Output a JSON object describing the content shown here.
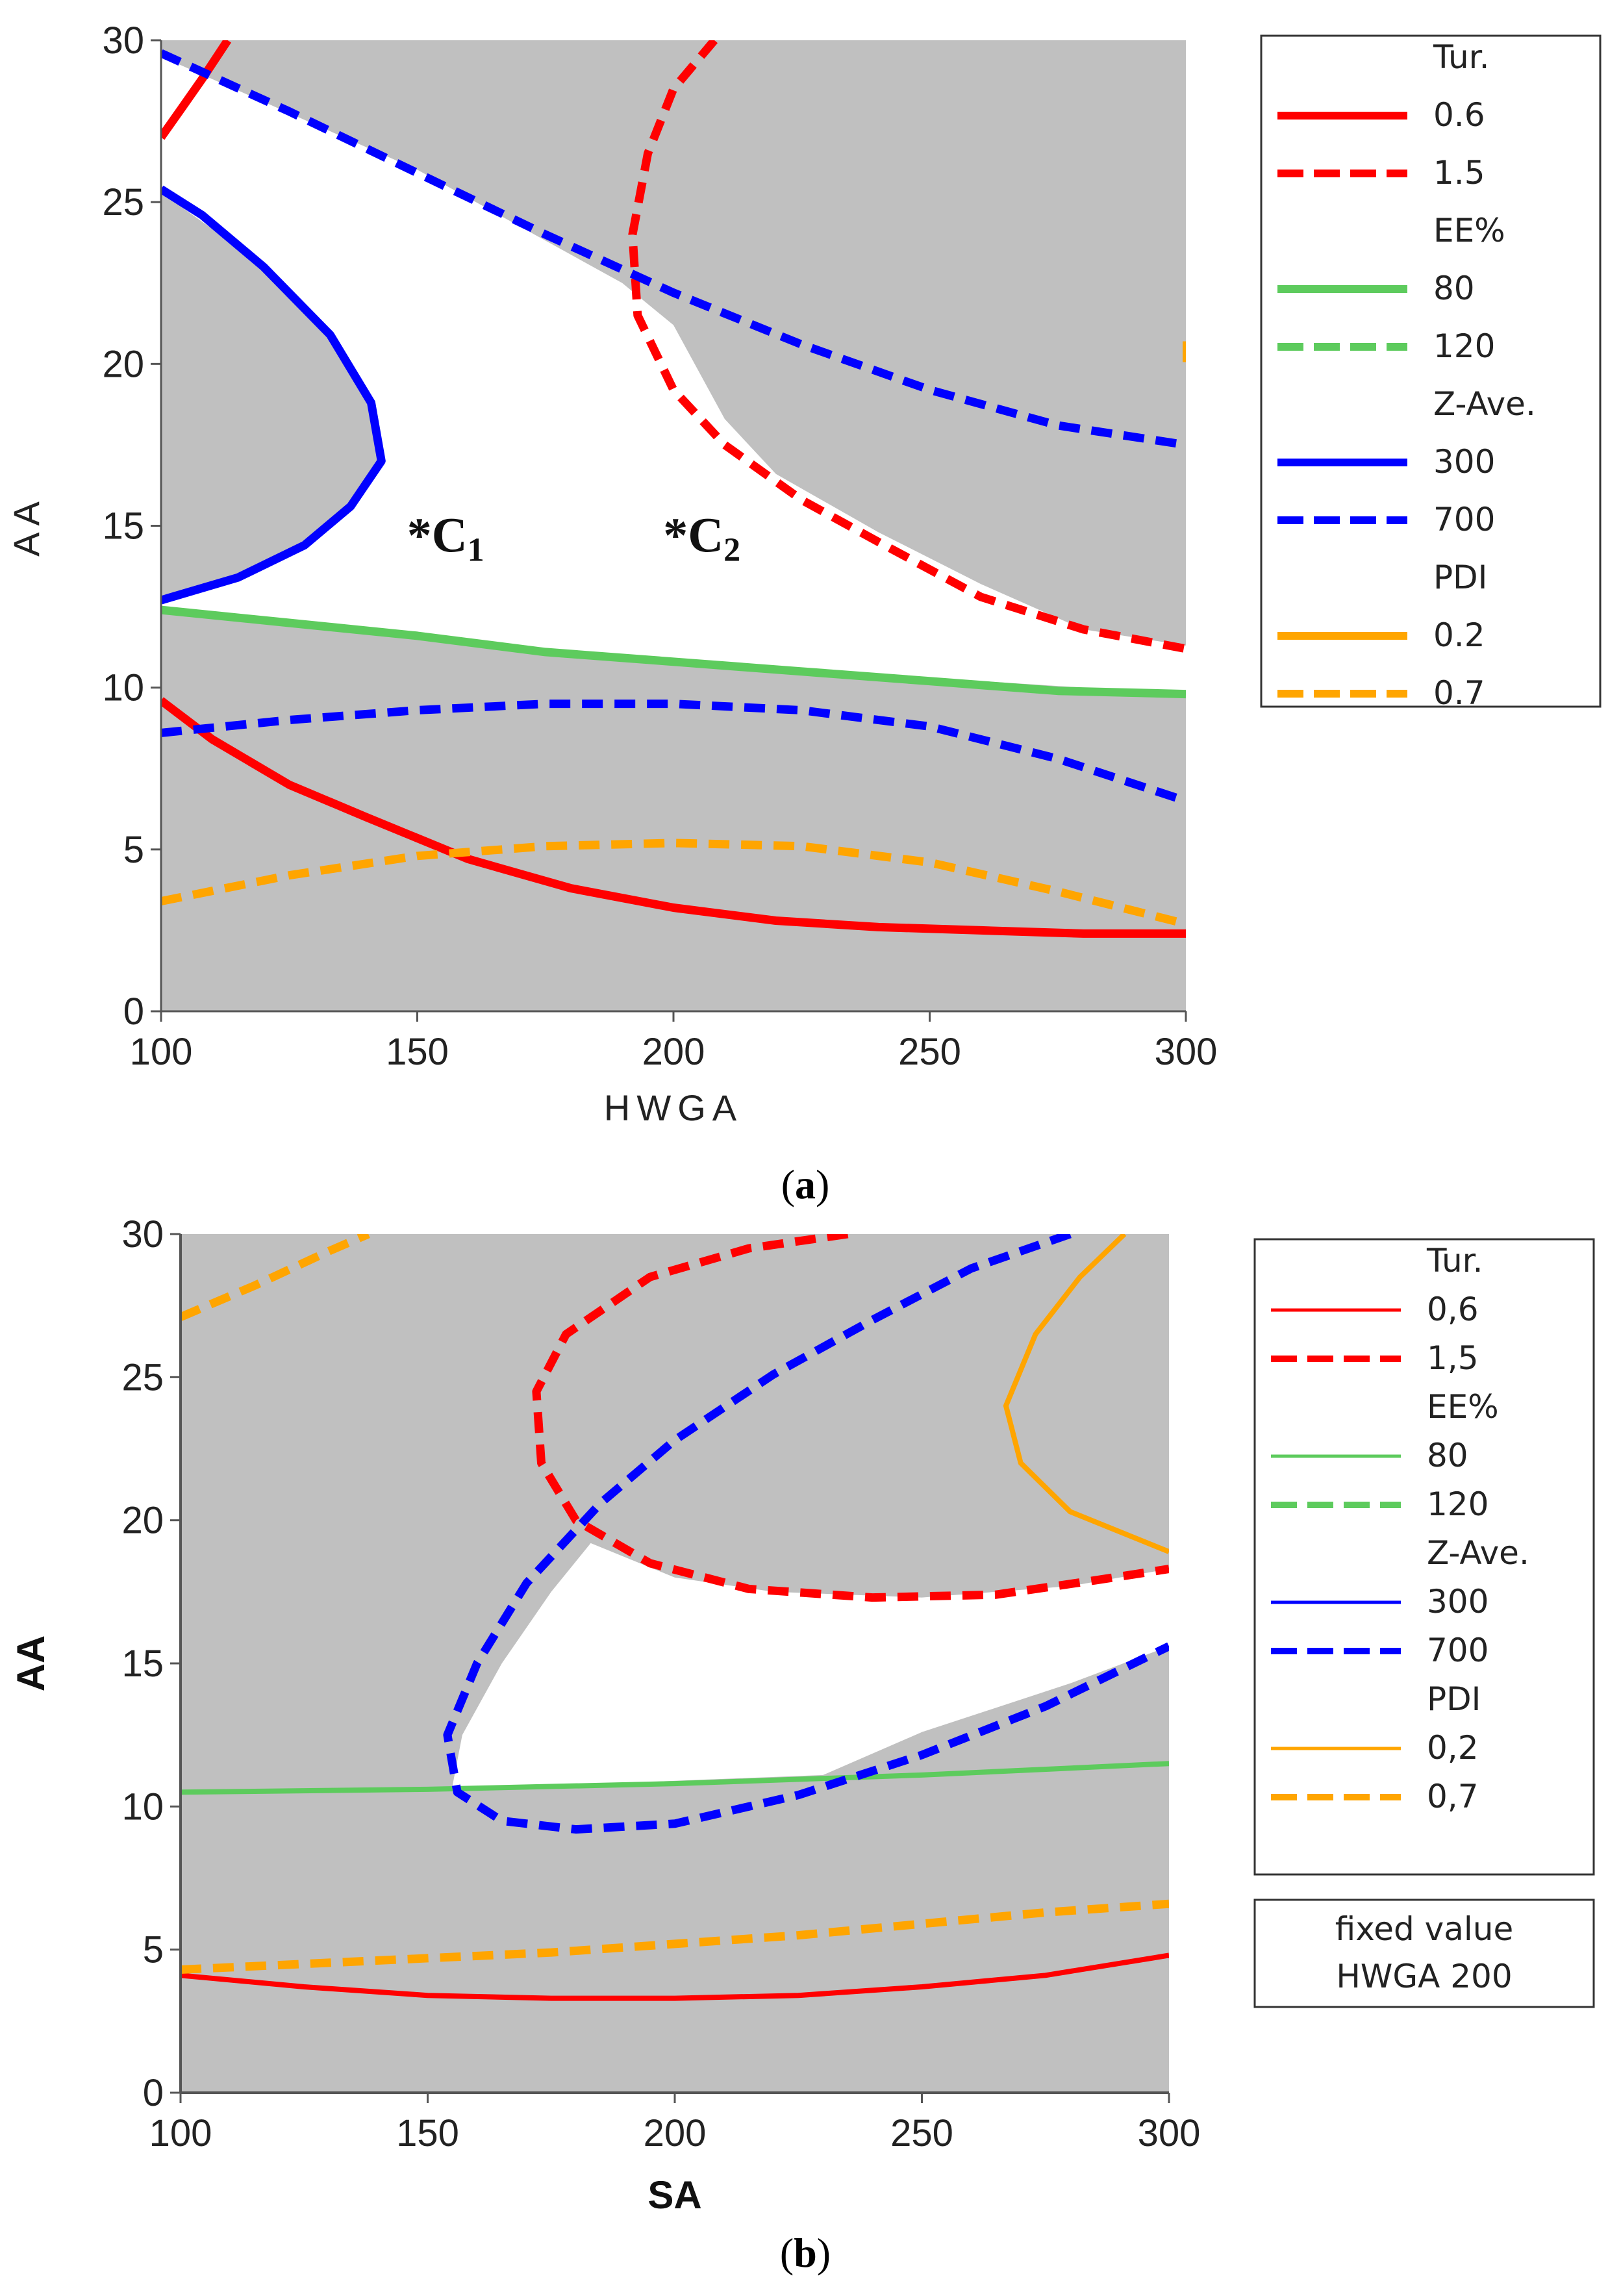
{
  "chart_data": [
    {
      "type": "line",
      "panel_label": "(a)",
      "title": "",
      "xlabel": "HWGA",
      "ylabel": "AA",
      "xlim": [
        100,
        300
      ],
      "ylim": [
        0,
        30
      ],
      "xticks": [
        "100",
        "150",
        "200",
        "250",
        "300"
      ],
      "yticks": [
        "0",
        "5",
        "10",
        "15",
        "20",
        "25",
        "30"
      ],
      "background_color": "#c0c0c0",
      "feasible_region_color": "#ffffff",
      "feasible_region": [
        [
          100,
          12.6
        ],
        [
          115,
          13.4
        ],
        [
          130,
          14.5
        ],
        [
          138,
          15.7
        ],
        [
          143,
          17.0
        ],
        [
          140,
          19.0
        ],
        [
          130,
          21.4
        ],
        [
          115,
          23.6
        ],
        [
          100,
          25.3
        ],
        [
          100,
          29.5
        ],
        [
          150,
          26.0
        ],
        [
          190,
          22.5
        ],
        [
          200,
          21.2
        ],
        [
          210,
          18.3
        ],
        [
          220,
          16.6
        ],
        [
          240,
          14.8
        ],
        [
          260,
          13.2
        ],
        [
          280,
          11.8
        ],
        [
          300,
          11.3
        ],
        [
          300,
          9.8
        ],
        [
          250,
          10.3
        ],
        [
          200,
          10.8
        ],
        [
          150,
          11.6
        ],
        [
          100,
          12.4
        ]
      ],
      "annotations": [
        {
          "text": "*C",
          "subscript": "1",
          "x": 148,
          "y": 14.2
        },
        {
          "text": "*C",
          "subscript": "2",
          "x": 198,
          "y": 14.2
        }
      ],
      "legend_groups": [
        {
          "title": "Tur.",
          "entries": [
            {
              "label": "0.6",
              "style": "solid"
            },
            {
              "label": "1.5",
              "style": "dashed"
            }
          ]
        },
        {
          "title": "EE%",
          "entries": [
            {
              "label": "80",
              "style": "solid"
            },
            {
              "label": "120",
              "style": "dashed"
            }
          ]
        },
        {
          "title": "Z-Ave.",
          "entries": [
            {
              "label": "300",
              "style": "solid"
            },
            {
              "label": "700",
              "style": "dashed"
            }
          ]
        },
        {
          "title": "PDI",
          "entries": [
            {
              "label": "0.2",
              "style": "solid"
            },
            {
              "label": "0.7",
              "style": "dashed"
            }
          ]
        }
      ],
      "fixed_value_box": null,
      "series": [
        {
          "name": "Tur. 0.6",
          "color": "#ff0000",
          "style": "solid",
          "width": 1.3,
          "points": [
            [
              100,
              9.6
            ],
            [
              110,
              8.4
            ],
            [
              125,
              7.0
            ],
            [
              140,
              6.0
            ],
            [
              160,
              4.7
            ],
            [
              180,
              3.8
            ],
            [
              200,
              3.2
            ],
            [
              220,
              2.8
            ],
            [
              240,
              2.6
            ],
            [
              260,
              2.5
            ],
            [
              280,
              2.4
            ],
            [
              300,
              2.4
            ]
          ]
        },
        {
          "name": "Tur. 0.6",
          "color": "#ff0000",
          "style": "solid",
          "width": 1.3,
          "points": [
            [
              100,
              27.0
            ],
            [
              104,
              27.9
            ],
            [
              108,
              28.8
            ],
            [
              113,
              30.0
            ]
          ]
        },
        {
          "name": "Tur. 1.5",
          "color": "#ff0000",
          "style": "dashed",
          "width": 1.3,
          "points": [
            [
              208,
              30.0
            ],
            [
              200,
              28.5
            ],
            [
              195,
              26.5
            ],
            [
              192,
              24.0
            ],
            [
              193,
              21.5
            ],
            [
              200,
              19.2
            ],
            [
              210,
              17.5
            ],
            [
              225,
              15.8
            ],
            [
              240,
              14.5
            ],
            [
              260,
              12.8
            ],
            [
              280,
              11.8
            ],
            [
              300,
              11.2
            ]
          ]
        },
        {
          "name": "EE% 80",
          "color": "#5dcb5d",
          "style": "solid",
          "width": 1.3,
          "points": [
            [
              100,
              12.4
            ],
            [
              125,
              12.0
            ],
            [
              150,
              11.6
            ],
            [
              175,
              11.1
            ],
            [
              200,
              10.8
            ],
            [
              225,
              10.5
            ],
            [
              250,
              10.2
            ],
            [
              275,
              9.9
            ],
            [
              300,
              9.8
            ]
          ]
        },
        {
          "name": "Z-Ave. 300",
          "color": "#0000ff",
          "style": "solid",
          "width": 1.3,
          "points": [
            [
              100,
              12.7
            ],
            [
              115,
              13.4
            ],
            [
              128,
              14.4
            ],
            [
              137,
              15.6
            ],
            [
              143,
              17.0
            ],
            [
              141,
              18.8
            ],
            [
              133,
              20.9
            ],
            [
              120,
              23.0
            ],
            [
              108,
              24.6
            ],
            [
              100,
              25.4
            ]
          ]
        },
        {
          "name": "Z-Ave. 700",
          "color": "#0000ff",
          "style": "dashed",
          "width": 1.3,
          "points": [
            [
              100,
              29.6
            ],
            [
              125,
              27.8
            ],
            [
              150,
              25.9
            ],
            [
              175,
              24.0
            ],
            [
              200,
              22.2
            ],
            [
              225,
              20.6
            ],
            [
              250,
              19.2
            ],
            [
              275,
              18.1
            ],
            [
              300,
              17.5
            ]
          ]
        },
        {
          "name": "Z-Ave. 700",
          "color": "#0000ff",
          "style": "dashed",
          "width": 1.3,
          "points": [
            [
              100,
              8.6
            ],
            [
              125,
              9.0
            ],
            [
              150,
              9.3
            ],
            [
              175,
              9.5
            ],
            [
              200,
              9.5
            ],
            [
              225,
              9.3
            ],
            [
              250,
              8.8
            ],
            [
              275,
              7.8
            ],
            [
              300,
              6.5
            ]
          ]
        },
        {
          "name": "PDI 0.7",
          "color": "#ffa500",
          "style": "dashed",
          "width": 1.3,
          "points": [
            [
              100,
              3.4
            ],
            [
              125,
              4.2
            ],
            [
              150,
              4.8
            ],
            [
              175,
              5.1
            ],
            [
              200,
              5.2
            ],
            [
              225,
              5.1
            ],
            [
              250,
              4.6
            ],
            [
              275,
              3.7
            ],
            [
              300,
              2.7
            ]
          ]
        },
        {
          "name": "PDI 0.7",
          "color": "#ffa500",
          "style": "dashed",
          "width": 1.0,
          "points": [
            [
              300,
              20.7
            ],
            [
              300,
              19.9
            ]
          ]
        }
      ]
    },
    {
      "type": "line",
      "panel_label": "(b)",
      "title": "",
      "xlabel": "SA",
      "ylabel": "AA",
      "xlim": [
        100,
        300
      ],
      "ylim": [
        0,
        30
      ],
      "xticks": [
        "100",
        "150",
        "200",
        "250",
        "300"
      ],
      "yticks": [
        "0",
        "5",
        "10",
        "15",
        "20",
        "25",
        "30"
      ],
      "background_color": "#c0c0c0",
      "feasible_region_color": "#ffffff",
      "feasible_region": [
        [
          183,
          19.2
        ],
        [
          200,
          18.0
        ],
        [
          220,
          17.5
        ],
        [
          250,
          17.3
        ],
        [
          280,
          17.7
        ],
        [
          300,
          18.3
        ],
        [
          300,
          15.6
        ],
        [
          280,
          14.3
        ],
        [
          250,
          12.6
        ],
        [
          230,
          11.1
        ],
        [
          200,
          10.9
        ],
        [
          175,
          10.7
        ],
        [
          155,
          10.7
        ],
        [
          157,
          12.5
        ],
        [
          165,
          15.0
        ],
        [
          175,
          17.5
        ]
      ],
      "annotations": [],
      "legend_groups": [
        {
          "title": "Tur.",
          "entries": [
            {
              "label": "0,6",
              "style": "solid"
            },
            {
              "label": "1,5",
              "style": "dashed"
            }
          ]
        },
        {
          "title": "EE%",
          "entries": [
            {
              "label": "80",
              "style": "solid"
            },
            {
              "label": "120",
              "style": "dashed"
            }
          ]
        },
        {
          "title": "Z-Ave.",
          "entries": [
            {
              "label": "300",
              "style": "solid"
            },
            {
              "label": "700",
              "style": "dashed"
            }
          ]
        },
        {
          "title": "PDI",
          "entries": [
            {
              "label": "0,2",
              "style": "solid"
            },
            {
              "label": "0,7",
              "style": "dashed"
            }
          ]
        }
      ],
      "fixed_value_box": {
        "line1": "fixed value",
        "line2": "HWGA  200"
      },
      "series": [
        {
          "name": "Tur. 0,6",
          "color": "#ff0000",
          "style": "solid",
          "width": 0.8,
          "points": [
            [
              100,
              4.1
            ],
            [
              125,
              3.7
            ],
            [
              150,
              3.4
            ],
            [
              175,
              3.3
            ],
            [
              200,
              3.3
            ],
            [
              225,
              3.4
            ],
            [
              250,
              3.7
            ],
            [
              275,
              4.1
            ],
            [
              300,
              4.8
            ]
          ]
        },
        {
          "name": "Tur. 1,5",
          "color": "#ff0000",
          "style": "dashed",
          "width": 1.3,
          "points": [
            [
              235,
              30.0
            ],
            [
              215,
              29.5
            ],
            [
              195,
              28.5
            ],
            [
              178,
              26.5
            ],
            [
              172,
              24.5
            ],
            [
              173,
              22.0
            ],
            [
              180,
              20.0
            ],
            [
              195,
              18.5
            ],
            [
              215,
              17.6
            ],
            [
              240,
              17.3
            ],
            [
              265,
              17.4
            ],
            [
              285,
              17.9
            ],
            [
              300,
              18.3
            ]
          ]
        },
        {
          "name": "EE% 80",
          "color": "#5dcb5d",
          "style": "solid",
          "width": 0.8,
          "points": [
            [
              100,
              10.5
            ],
            [
              150,
              10.6
            ],
            [
              200,
              10.8
            ],
            [
              250,
              11.1
            ],
            [
              300,
              11.5
            ]
          ]
        },
        {
          "name": "Z-Ave. 700",
          "color": "#0000ff",
          "style": "dashed",
          "width": 1.3,
          "points": [
            [
              280,
              30.0
            ],
            [
              260,
              28.8
            ],
            [
              240,
              27.0
            ],
            [
              220,
              25.1
            ],
            [
              200,
              22.8
            ],
            [
              185,
              20.6
            ],
            [
              170,
              17.8
            ],
            [
              160,
              15.0
            ],
            [
              154,
              12.5
            ],
            [
              156,
              10.5
            ],
            [
              165,
              9.5
            ],
            [
              180,
              9.2
            ],
            [
              200,
              9.4
            ],
            [
              225,
              10.4
            ],
            [
              250,
              11.8
            ],
            [
              275,
              13.5
            ],
            [
              300,
              15.6
            ]
          ]
        },
        {
          "name": "PDI 0,2",
          "color": "#ffa500",
          "style": "solid",
          "width": 0.8,
          "points": [
            [
              291,
              30.0
            ],
            [
              282,
              28.5
            ],
            [
              273,
              26.5
            ],
            [
              267,
              24.0
            ],
            [
              270,
              22.0
            ],
            [
              280,
              20.3
            ],
            [
              300,
              18.9
            ]
          ]
        },
        {
          "name": "PDI 0,7",
          "color": "#ffa500",
          "style": "dashed",
          "width": 1.3,
          "points": [
            [
              100,
              4.3
            ],
            [
              125,
              4.5
            ],
            [
              150,
              4.7
            ],
            [
              175,
              4.9
            ],
            [
              200,
              5.2
            ],
            [
              225,
              5.5
            ],
            [
              250,
              5.9
            ],
            [
              275,
              6.3
            ],
            [
              300,
              6.6
            ]
          ]
        },
        {
          "name": "PDI 0,7",
          "color": "#ffa500",
          "style": "dashed",
          "width": 1.3,
          "points": [
            [
              100,
              27.1
            ],
            [
              115,
              28.2
            ],
            [
              130,
              29.4
            ],
            [
              138,
              30.0
            ]
          ]
        }
      ]
    }
  ]
}
